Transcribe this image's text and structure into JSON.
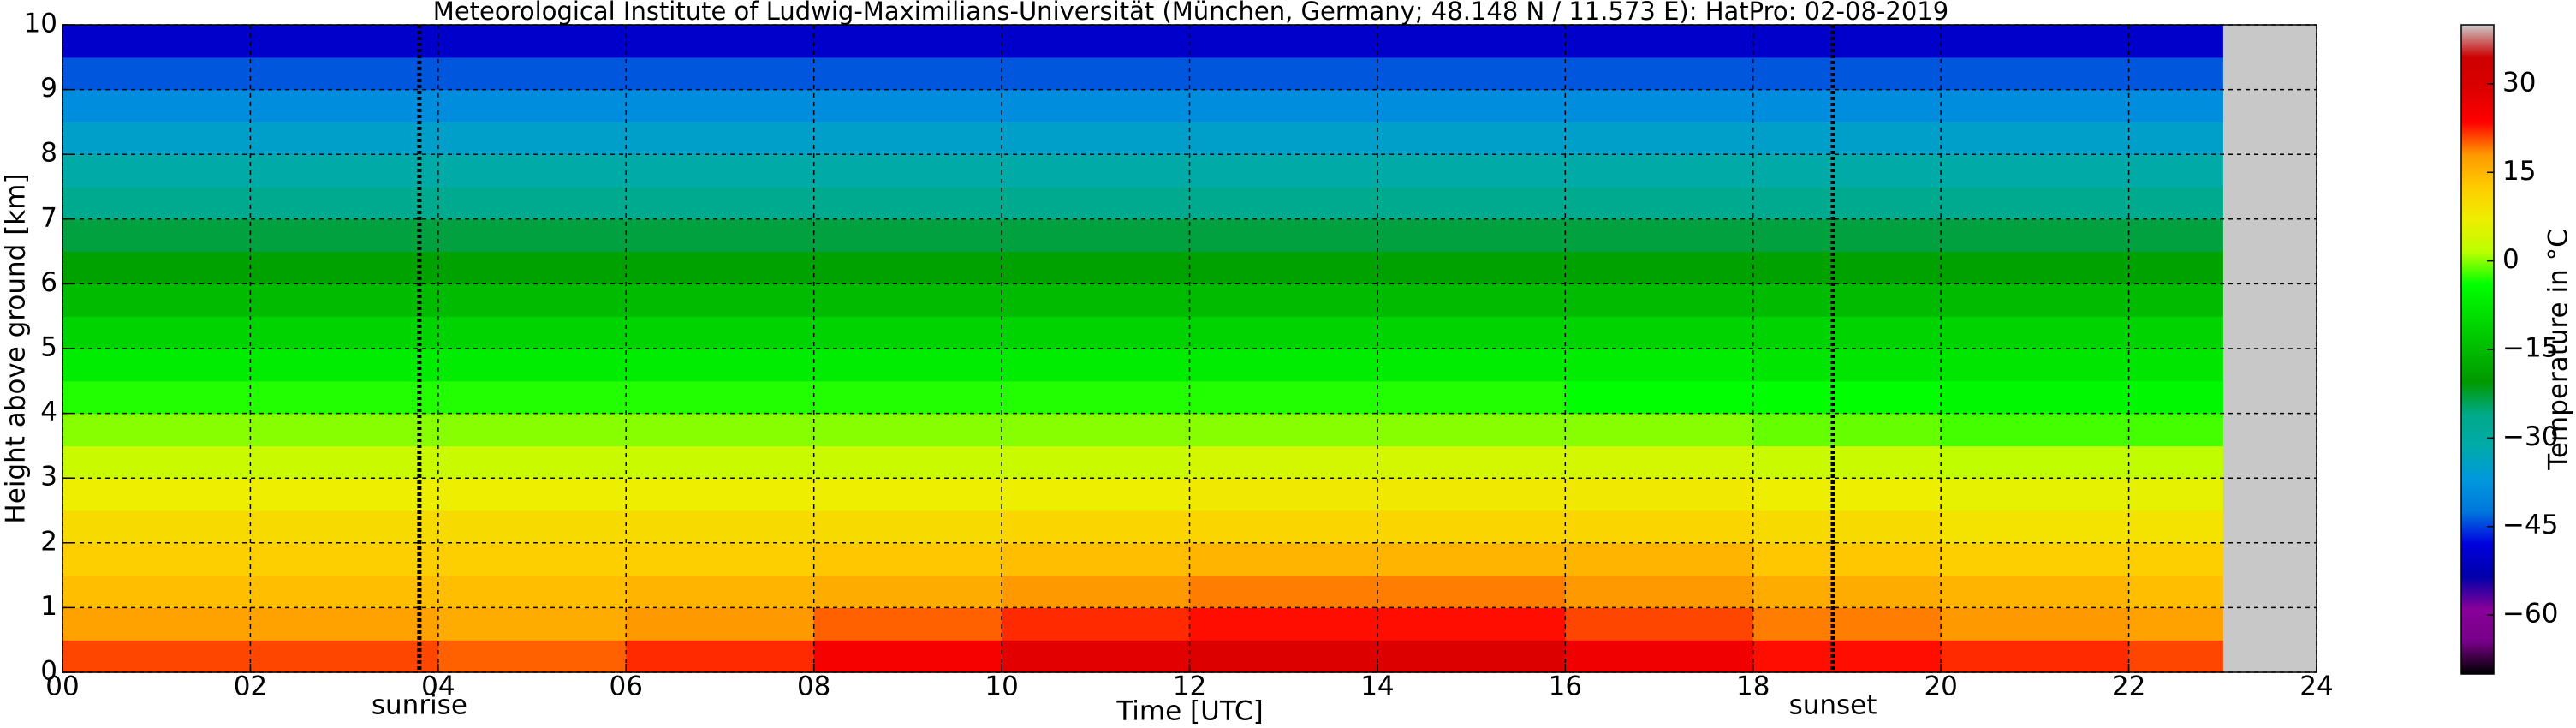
{
  "chart_data": {
    "type": "heatmap",
    "title": "Meteorological Institute of Ludwig-Maximilians-Universität (München, Germany; 48.148 N / 11.573 E):    HatPro: 02-08-2019",
    "xlabel": "Time [UTC]",
    "ylabel": "Height above ground [km]",
    "colorbar_label": "Temperature in °C",
    "colormap": "nipy_spectral",
    "clim": [
      -70,
      40
    ],
    "cticks": [
      30,
      15,
      0,
      {
        "value": -15,
        "label": "−15"
      },
      {
        "value": -30,
        "label": "−30"
      },
      {
        "value": -45,
        "label": "−45"
      },
      {
        "value": -60,
        "label": "−60"
      }
    ],
    "xlim": [
      0,
      24
    ],
    "ylim": [
      0,
      10
    ],
    "xticks": [
      {
        "value": 0,
        "label": "00"
      },
      {
        "value": 2,
        "label": "02"
      },
      {
        "value": 4,
        "label": "04"
      },
      {
        "value": 6,
        "label": "06"
      },
      {
        "value": 8,
        "label": "08"
      },
      10,
      12,
      14,
      16,
      18,
      20,
      22,
      24
    ],
    "yticks": [
      0,
      1,
      2,
      3,
      4,
      5,
      6,
      7,
      8,
      9,
      10
    ],
    "grid": true,
    "annotations": [
      {
        "text": "sunrise",
        "x": 3.8
      },
      {
        "text": "sunset",
        "x": 18.85
      }
    ],
    "x_edges": [
      0,
      2,
      4,
      6,
      8,
      10,
      12,
      14,
      16,
      18,
      20,
      22,
      23
    ],
    "y_edges": [
      0,
      0.5,
      1,
      1.5,
      2,
      2.5,
      3,
      3.5,
      4,
      4.5,
      5,
      5.5,
      6,
      6.5,
      7,
      7.5,
      8,
      8.5,
      9,
      9.5,
      10
    ],
    "values": [
      [
        21,
        21,
        20,
        22,
        25,
        28,
        29,
        29,
        26,
        23,
        22,
        21
      ],
      [
        17,
        17,
        16,
        18,
        20,
        22,
        23,
        23,
        21,
        19,
        18,
        17
      ],
      [
        14,
        14,
        14,
        15,
        16,
        18,
        19,
        19,
        18,
        16,
        15,
        14
      ],
      [
        12,
        12,
        12,
        12,
        13,
        14,
        15,
        15,
        15,
        13,
        12,
        12
      ],
      [
        10,
        10,
        10,
        10,
        10,
        11,
        11,
        11,
        11,
        10,
        9,
        9
      ],
      [
        7,
        7,
        7,
        7,
        7,
        7,
        8,
        8,
        8,
        7,
        6,
        6
      ],
      [
        3,
        3,
        3,
        3,
        3,
        3,
        4,
        4,
        4,
        3,
        2,
        2
      ],
      [
        0,
        0,
        0,
        0,
        0,
        0,
        0,
        0,
        0,
        -1,
        -2,
        -2
      ],
      [
        -3,
        -3,
        -3,
        -3,
        -3,
        -3,
        -3,
        -3,
        -4,
        -4,
        -5,
        -5
      ],
      [
        -7,
        -7,
        -7,
        -7,
        -7,
        -7,
        -7,
        -7,
        -7,
        -8,
        -8,
        -8
      ],
      [
        -11,
        -11,
        -11,
        -11,
        -11,
        -11,
        -11,
        -11,
        -11,
        -11,
        -11,
        -11
      ],
      [
        -15,
        -15,
        -15,
        -15,
        -15,
        -15,
        -15,
        -15,
        -15,
        -15,
        -15,
        -15
      ],
      [
        -19,
        -19,
        -19,
        -19,
        -19,
        -19,
        -19,
        -19,
        -19,
        -19,
        -19,
        -19
      ],
      [
        -23,
        -23,
        -23,
        -23,
        -23,
        -23,
        -23,
        -23,
        -23,
        -23,
        -23,
        -23
      ],
      [
        -27,
        -27,
        -27,
        -27,
        -27,
        -27,
        -27,
        -27,
        -27,
        -27,
        -27,
        -27
      ],
      [
        -31,
        -31,
        -31,
        -31,
        -31,
        -31,
        -31,
        -31,
        -31,
        -31,
        -31,
        -31
      ],
      [
        -35,
        -35,
        -35,
        -35,
        -35,
        -35,
        -35,
        -35,
        -35,
        -35,
        -35,
        -35
      ],
      [
        -39,
        -39,
        -39,
        -39,
        -39,
        -39,
        -39,
        -39,
        -39,
        -39,
        -39,
        -39
      ],
      [
        -44,
        -44,
        -44,
        -44,
        -44,
        -44,
        -44,
        -44,
        -44,
        -44,
        -44,
        -44
      ],
      [
        -50,
        -50,
        -50,
        -50,
        -50,
        -50,
        -50,
        -50,
        -50,
        -50,
        -50,
        -50
      ]
    ]
  }
}
